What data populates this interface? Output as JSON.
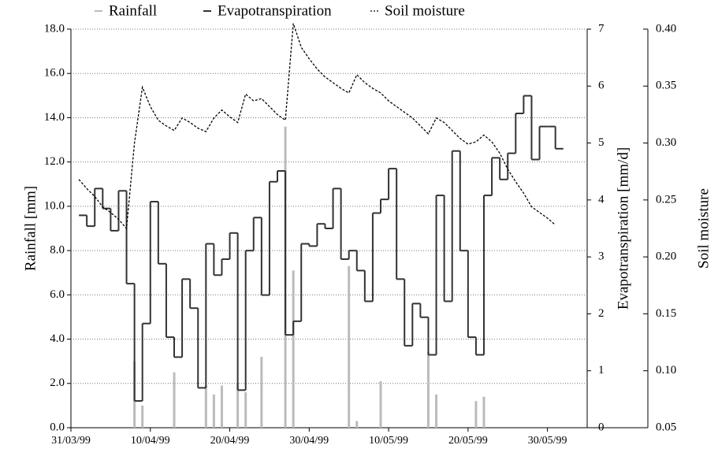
{
  "chart_data": {
    "type": "multi-axis",
    "legend": "top",
    "y_label": "Rainfall [mm]",
    "y2_label": "Evapotranspiration [mm/d]",
    "y3_label": "Soil moisture",
    "x": [
      "01/04/99",
      "02/04/99",
      "03/04/99",
      "04/04/99",
      "05/04/99",
      "06/04/99",
      "07/04/99",
      "08/04/99",
      "09/04/99",
      "10/04/99",
      "11/04/99",
      "12/04/99",
      "13/04/99",
      "14/04/99",
      "15/04/99",
      "16/04/99",
      "17/04/99",
      "18/04/99",
      "19/04/99",
      "20/04/99",
      "21/04/99",
      "22/04/99",
      "23/04/99",
      "24/04/99",
      "25/04/99",
      "26/04/99",
      "27/04/99",
      "28/04/99",
      "29/04/99",
      "30/04/99",
      "01/05/99",
      "02/05/99",
      "03/05/99",
      "04/05/99",
      "05/05/99",
      "06/05/99",
      "07/05/99",
      "08/05/99",
      "09/05/99",
      "10/05/99",
      "11/05/99",
      "12/05/99",
      "13/05/99",
      "14/05/99",
      "15/05/99",
      "16/05/99",
      "17/05/99",
      "18/05/99",
      "19/05/99",
      "20/05/99",
      "21/05/99",
      "22/05/99",
      "23/05/99",
      "24/05/99",
      "25/05/99",
      "26/05/99",
      "27/05/99",
      "28/05/99",
      "29/05/99",
      "30/05/99",
      "31/05/99"
    ],
    "xlim": [
      "31/03/99",
      "04/06/99"
    ],
    "xticks": [
      "31/03/99",
      "10/04/99",
      "20/04/99",
      "30/04/99",
      "10/05/99",
      "20/05/99",
      "30/05/99"
    ],
    "ylim": [
      0,
      18
    ],
    "yticks": [
      {
        "value": 0,
        "label": "0.0"
      },
      {
        "value": 2,
        "label": "2.0"
      },
      {
        "value": 4,
        "label": "4.0"
      },
      {
        "value": 6,
        "label": "6.0"
      },
      {
        "value": 8,
        "label": "8.0"
      },
      {
        "value": 10,
        "label": "10.0"
      },
      {
        "value": 12,
        "label": "12.0"
      },
      {
        "value": 14,
        "label": "14.0"
      },
      {
        "value": 16,
        "label": "16.0"
      },
      {
        "value": 18,
        "label": "18.0"
      }
    ],
    "y2lim": [
      0,
      7
    ],
    "y2ticks": [
      0,
      1,
      2,
      3,
      4,
      5,
      6,
      7
    ],
    "y3lim": [
      0.05,
      0.4
    ],
    "y3ticks": [
      0.05,
      {
        "value": 0.1,
        "label": "0.10"
      },
      0.15,
      {
        "value": 0.2,
        "label": "0.20"
      },
      0.25,
      {
        "value": 0.3,
        "label": "0.30"
      },
      0.35,
      {
        "value": 0.4,
        "label": "0.40"
      }
    ],
    "grid": true,
    "series": [
      {
        "name": "Rainfall",
        "type": "bar",
        "axis": "y",
        "color": "#bbbbbb",
        "values": [
          0,
          0,
          0,
          0,
          0,
          0,
          0,
          3.0,
          1.0,
          0,
          0,
          0,
          2.5,
          0,
          0,
          0,
          1.9,
          1.5,
          1.9,
          0,
          2.0,
          1.6,
          0,
          3.2,
          0,
          0,
          13.6,
          7.1,
          0,
          0,
          0,
          0,
          0,
          0,
          7.3,
          0.3,
          0,
          0,
          2.1,
          0,
          0,
          0,
          0,
          0,
          3.4,
          1.5,
          0,
          0,
          0,
          0,
          1.2,
          1.4,
          0,
          0,
          0,
          0,
          0,
          0,
          0,
          0,
          0
        ]
      },
      {
        "name": "Evapotranspiration",
        "type": "step",
        "axis": "y2",
        "color": "#333333",
        "values": [
          3.73,
          3.54,
          4.2,
          3.85,
          3.46,
          4.16,
          2.53,
          0.47,
          1.83,
          3.97,
          2.88,
          1.59,
          1.24,
          2.61,
          2.1,
          0.7,
          3.23,
          2.68,
          2.96,
          3.42,
          0.66,
          3.11,
          3.69,
          2.33,
          4.32,
          4.51,
          1.63,
          1.87,
          3.23,
          3.19,
          3.58,
          3.5,
          4.2,
          2.96,
          3.11,
          2.76,
          2.22,
          3.77,
          4.01,
          4.55,
          2.61,
          1.44,
          2.18,
          1.94,
          1.28,
          4.08,
          2.22,
          4.86,
          3.11,
          1.59,
          1.28,
          4.08,
          4.74,
          4.36,
          4.82,
          5.52,
          5.83,
          4.71,
          5.29,
          5.29,
          4.9
        ]
      },
      {
        "name": "Soil moisture",
        "type": "dashed",
        "axis": "y3",
        "color": "#000000",
        "values": [
          0.268,
          0.26,
          0.253,
          0.244,
          0.239,
          0.233,
          0.225,
          0.3,
          0.349,
          0.332,
          0.32,
          0.315,
          0.311,
          0.322,
          0.318,
          0.313,
          0.31,
          0.322,
          0.329,
          0.323,
          0.318,
          0.343,
          0.337,
          0.339,
          0.332,
          0.325,
          0.32,
          0.405,
          0.384,
          0.374,
          0.365,
          0.358,
          0.353,
          0.348,
          0.344,
          0.36,
          0.353,
          0.348,
          0.344,
          0.337,
          0.332,
          0.327,
          0.322,
          0.315,
          0.308,
          0.322,
          0.318,
          0.311,
          0.304,
          0.299,
          0.301,
          0.307,
          0.301,
          0.291,
          0.277,
          0.266,
          0.256,
          0.244,
          0.239,
          0.234,
          0.228
        ]
      }
    ]
  }
}
